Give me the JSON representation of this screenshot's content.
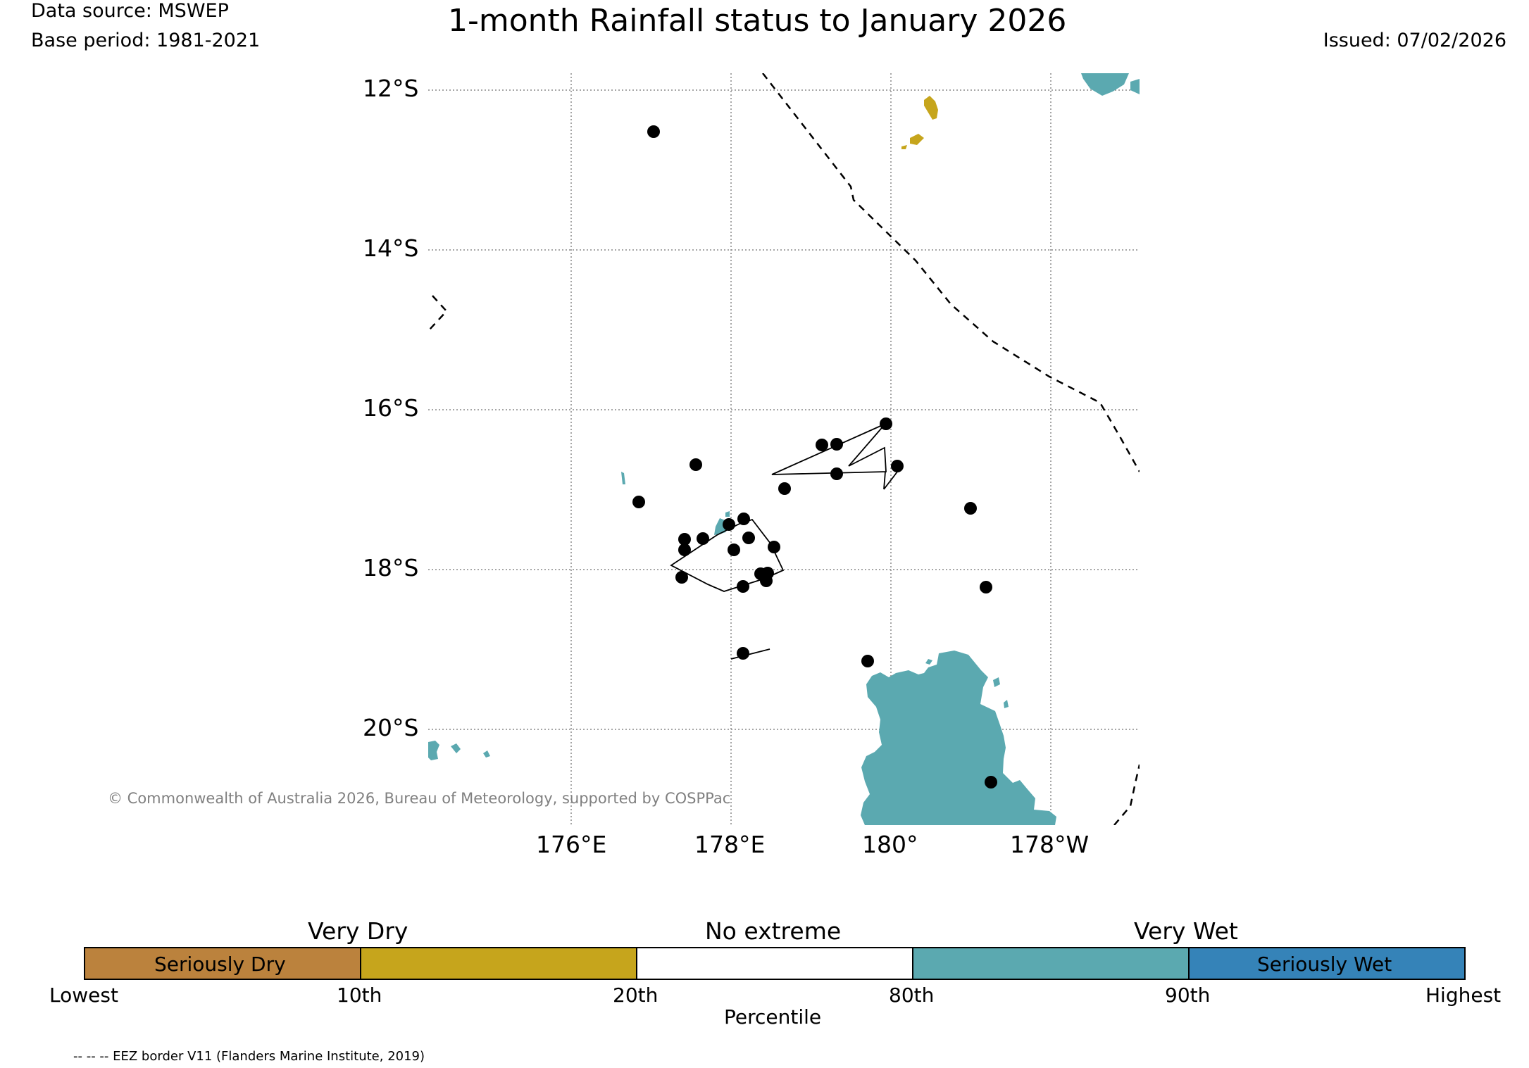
{
  "header": {
    "data_source": "Data source: MSWEP",
    "base_period": "Base period: 1981-2021",
    "title": "1-month Rainfall status to January 2026",
    "issued": "Issued: 07/02/2026"
  },
  "map": {
    "lat_labels": [
      "12°S",
      "14°S",
      "16°S",
      "18°S",
      "20°S"
    ],
    "lon_labels": [
      "176°E",
      "178°E",
      "180°",
      "178°W"
    ],
    "copyright": "© Commonwealth of Australia 2026, Bureau of Meteorology, supported by COSPPac",
    "colors": {
      "very_wet": "#5ba9b0",
      "very_dry": "#c6a51c",
      "station": "#000000",
      "gridline": "#888888"
    },
    "stations_count": 28
  },
  "colorbar": {
    "heading_very_dry": "Very Dry",
    "heading_no_extreme": "No extreme",
    "heading_very_wet": "Very Wet",
    "segments": [
      {
        "label": "Seriously Dry",
        "color": "#bb823d"
      },
      {
        "label": "",
        "color": "#c6a51c"
      },
      {
        "label": "",
        "color": "#ffffff"
      },
      {
        "label": "",
        "color": "#5ba9b0"
      },
      {
        "label": "Seriously Wet",
        "color": "#3583b8"
      }
    ],
    "ticks": [
      "Lowest",
      "10th",
      "20th",
      "80th",
      "90th",
      "Highest"
    ],
    "axis_label": "Percentile"
  },
  "footnote": "-- -- -- EEZ border V11 (Flanders Marine Institute, 2019)"
}
